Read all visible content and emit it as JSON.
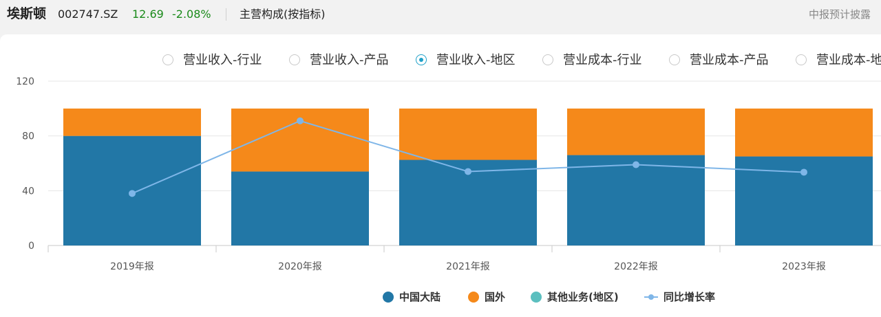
{
  "header": {
    "name": "埃斯顿",
    "code": "002747.SZ",
    "price": "12.69",
    "change": "-2.08%",
    "section": "主营构成(按指标)",
    "note": "中报预计披露"
  },
  "tabs": [
    {
      "label": "营业收入-行业",
      "selected": false
    },
    {
      "label": "营业收入-产品",
      "selected": false
    },
    {
      "label": "营业收入-地区",
      "selected": true
    },
    {
      "label": "营业成本-行业",
      "selected": false
    },
    {
      "label": "营业成本-产品",
      "selected": false
    },
    {
      "label": "营业成本-地区",
      "selected": false
    }
  ],
  "colors": {
    "china": "#2277a6",
    "overseas": "#f5891a",
    "other": "#5bbfbf",
    "growth": "#7fb6e8",
    "positive": "#1a8a1a",
    "selected": "#1ea0c8"
  },
  "chart_data": {
    "type": "bar",
    "categories": [
      "2019年报",
      "2020年报",
      "2021年报",
      "2022年报",
      "2023年报"
    ],
    "ylim": [
      0,
      120
    ],
    "yticks": [
      0,
      40,
      80,
      120
    ],
    "series": [
      {
        "name": "中国大陆",
        "type": "bar",
        "stack": true,
        "color": "#2277a6",
        "values": [
          80,
          54,
          62.5,
          66,
          65
        ]
      },
      {
        "name": "国外",
        "type": "bar",
        "stack": true,
        "color": "#f5891a",
        "values": [
          20,
          46,
          37.5,
          34,
          35
        ]
      },
      {
        "name": "其他业务(地区)",
        "type": "bar",
        "stack": true,
        "color": "#5bbfbf",
        "values": [
          0,
          0,
          0,
          0,
          0
        ]
      },
      {
        "name": "同比增长率",
        "type": "line",
        "color": "#7fb6e8",
        "values": [
          38,
          91,
          54,
          59,
          53.5
        ]
      }
    ]
  }
}
